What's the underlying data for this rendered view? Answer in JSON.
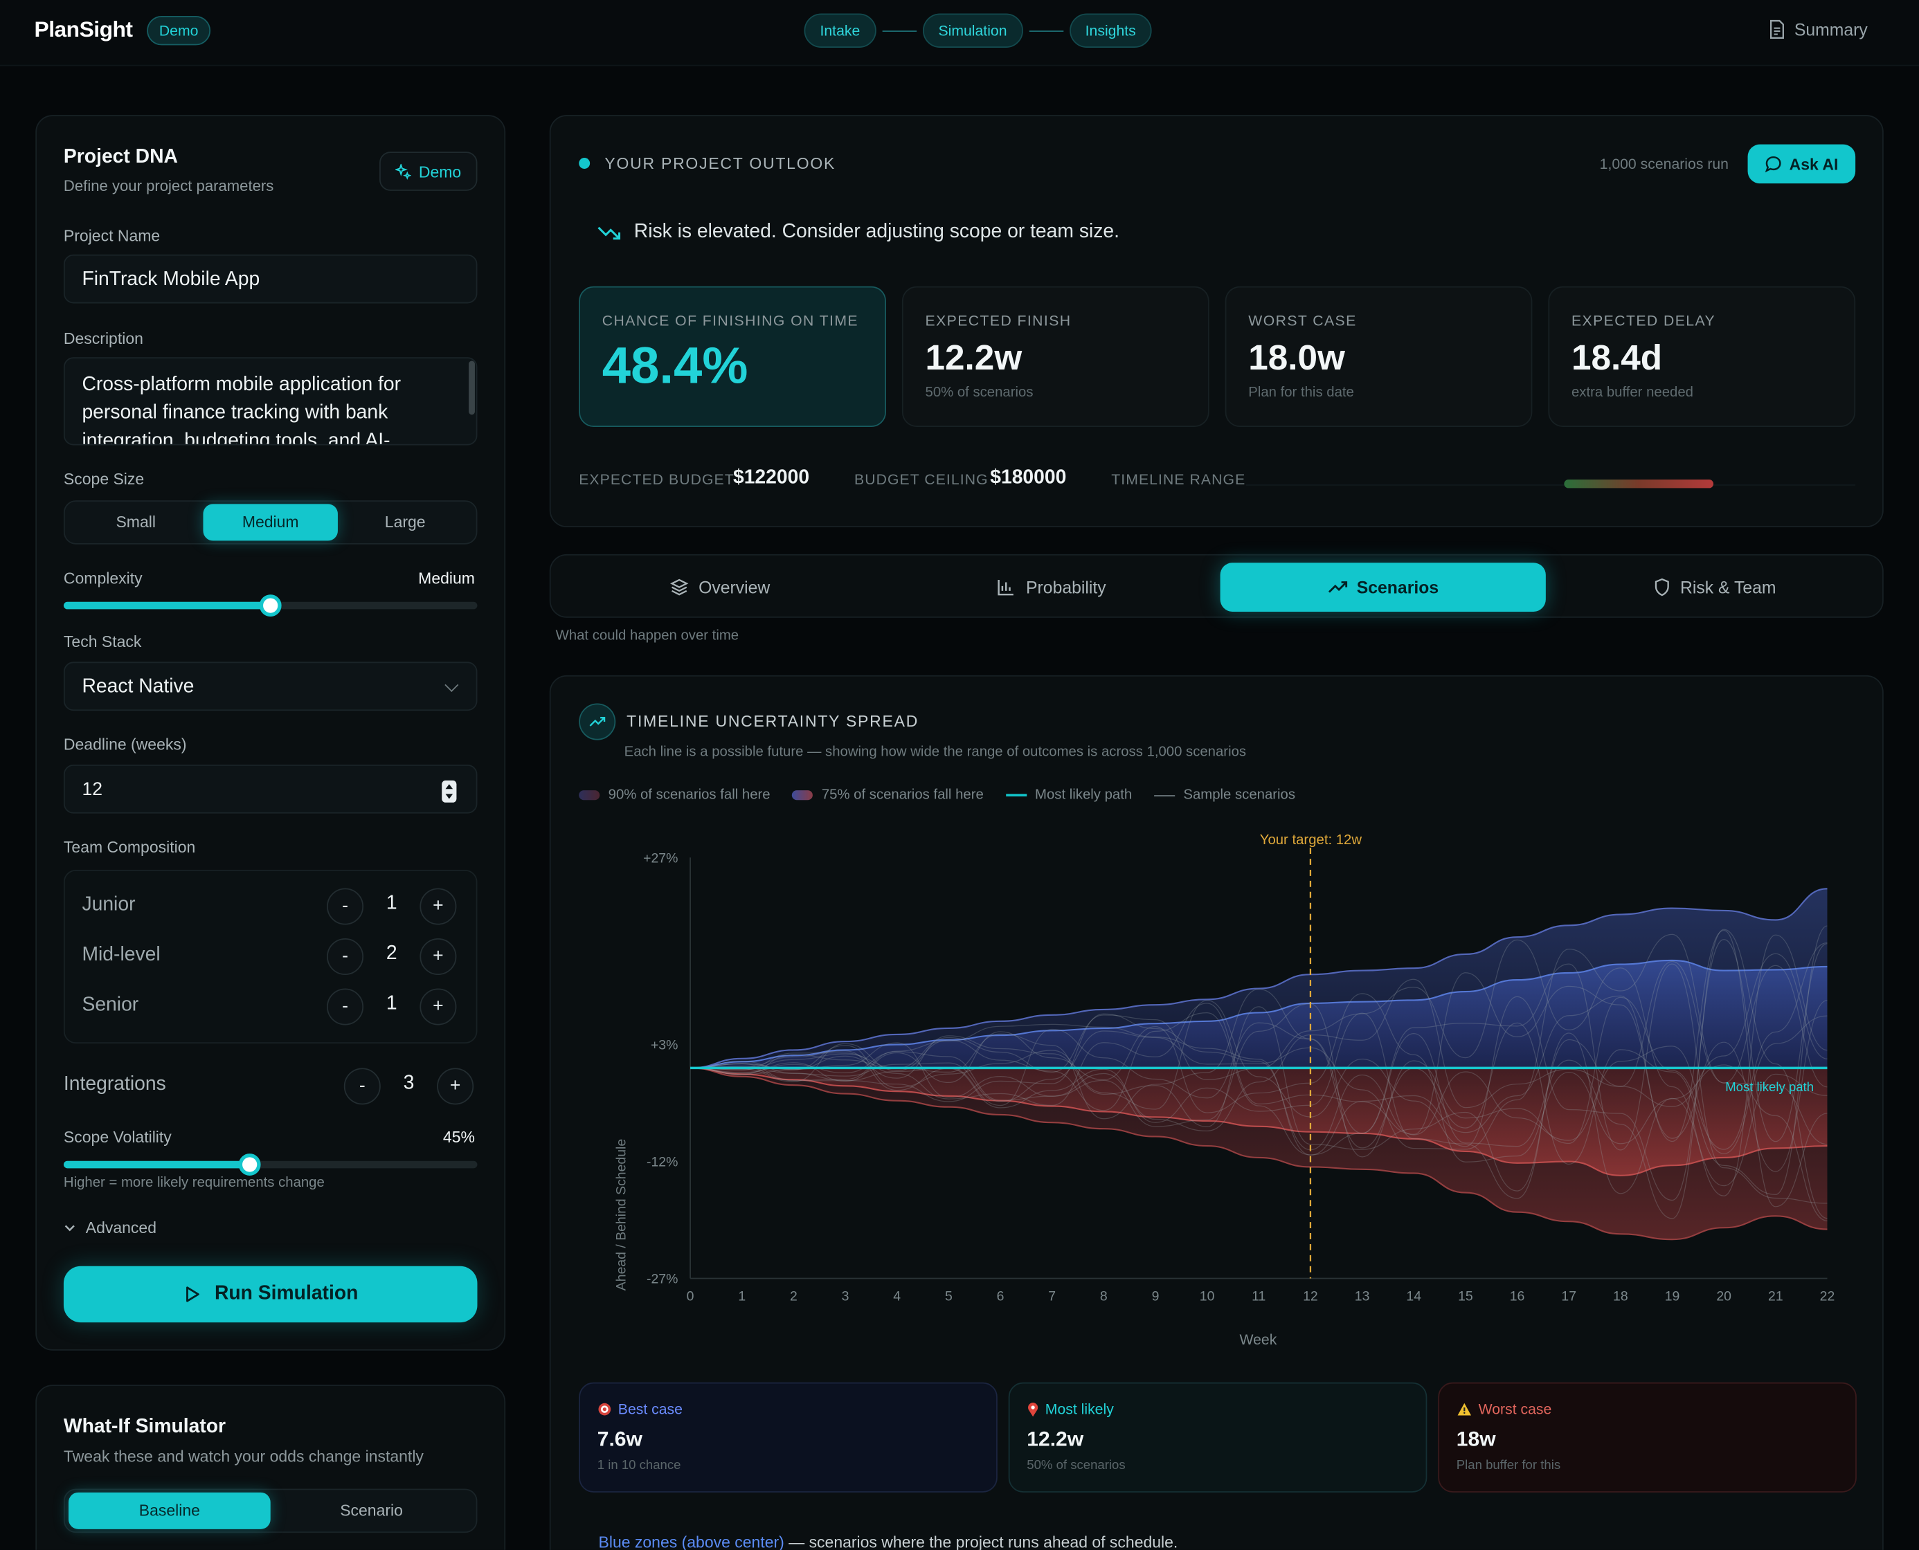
{
  "app": {
    "name": "PlanSight",
    "demo_badge": "Demo",
    "summary": "Summary"
  },
  "steps": [
    "Intake",
    "Simulation",
    "Insights"
  ],
  "project_dna": {
    "title": "Project DNA",
    "subtitle": "Define your project parameters",
    "demo_button": "Demo",
    "project_name_label": "Project Name",
    "project_name": "FinTrack Mobile App",
    "description_label": "Description",
    "description": "Cross-platform mobile application for personal finance tracking with bank integration, budgeting tools, and AI-",
    "scope_label": "Scope Size",
    "scope_options": [
      "Small",
      "Medium",
      "Large"
    ],
    "scope_selected": "Medium",
    "complexity_label": "Complexity",
    "complexity_value": "Medium",
    "complexity_level": 0.5,
    "tech_stack_label": "Tech Stack",
    "tech_stack": "React Native",
    "deadline_label": "Deadline (weeks)",
    "deadline": "12",
    "team_label": "Team Composition",
    "team": [
      {
        "role": "Junior",
        "count": "1"
      },
      {
        "role": "Mid-level",
        "count": "2"
      },
      {
        "role": "Senior",
        "count": "1"
      }
    ],
    "integrations_label": "Integrations",
    "integrations": "3",
    "volatility_label": "Scope Volatility",
    "volatility_value": "45%",
    "volatility_level": 0.45,
    "volatility_hint": "Higher = more likely requirements change",
    "advanced": "Advanced",
    "run_button": "Run Simulation"
  },
  "whatif": {
    "title": "What-If Simulator",
    "subtitle": "Tweak these and watch your odds change instantly",
    "options": [
      "Baseline",
      "Scenario"
    ],
    "selected": "Baseline"
  },
  "outlook": {
    "title": "YOUR PROJECT OUTLOOK",
    "scenarios_run": "1,000 scenarios run",
    "ask_ai": "Ask AI",
    "risk_message": "Risk is elevated. Consider adjusting scope or team size.",
    "stats": [
      {
        "label": "CHANCE OF FINISHING ON TIME",
        "value": "48.4%",
        "sub": ""
      },
      {
        "label": "EXPECTED FINISH",
        "value": "12.2w",
        "sub": "50% of scenarios"
      },
      {
        "label": "WORST CASE",
        "value": "18.0w",
        "sub": "Plan for this date"
      },
      {
        "label": "EXPECTED DELAY",
        "value": "18.4d",
        "sub": "extra buffer needed"
      }
    ],
    "expected_budget_label": "EXPECTED BUDGET",
    "expected_budget": "$122000",
    "budget_ceiling_label": "BUDGET CEILING",
    "budget_ceiling": "$180000",
    "timeline_range_label": "TIMELINE RANGE"
  },
  "tabs": [
    "Overview",
    "Probability",
    "Scenarios",
    "Risk & Team"
  ],
  "active_tab": "Scenarios",
  "tab_caption": "What could happen over time",
  "chart": {
    "title": "TIMELINE UNCERTAINTY SPREAD",
    "subtitle": "Each line is a possible future — showing how wide the range of outcomes is across 1,000 scenarios",
    "legend": [
      "90% of scenarios fall here",
      "75% of scenarios fall here",
      "Most likely path",
      "Sample scenarios"
    ],
    "target_label": "Your target: 12w",
    "most_likely_label": "Most likely path",
    "colors": {
      "accent": "#12c6cc",
      "ahead": "#4f6fd6",
      "behind": "#c44a4a",
      "target": "#e0a93a"
    }
  },
  "chart_data": {
    "type": "area",
    "xlabel": "Week",
    "ylabel": "Ahead / Behind Schedule",
    "x": [
      0,
      1,
      2,
      3,
      4,
      5,
      6,
      7,
      8,
      9,
      10,
      11,
      12,
      13,
      14,
      15,
      16,
      17,
      18,
      19,
      20,
      21,
      22
    ],
    "y_ticks": [
      "+27%",
      "+3%",
      "-12%",
      "-27%"
    ],
    "ylim": [
      -27,
      27
    ],
    "target_week": 12,
    "series": [
      {
        "name": "90% of scenarios fall here",
        "upper": [
          0,
          1.2,
          2.3,
          3.4,
          4.3,
          5.1,
          6.0,
          6.8,
          7.5,
          8.1,
          8.8,
          10.2,
          12.0,
          12.5,
          12.8,
          14.6,
          16.8,
          18.3,
          19.7,
          20.5,
          20.2,
          19.0,
          23.0
        ],
        "lower": [
          0,
          -1.1,
          -2.2,
          -3.3,
          -4.2,
          -5.0,
          -6.0,
          -7.0,
          -7.8,
          -8.8,
          -10.0,
          -11.5,
          -12.7,
          -13.0,
          -13.5,
          -16.0,
          -18.5,
          -19.7,
          -21.3,
          -22.0,
          -20.5,
          -19.0,
          -20.7
        ]
      },
      {
        "name": "75% of scenarios fall here",
        "upper": [
          0,
          0.8,
          1.6,
          2.3,
          3.0,
          3.6,
          4.2,
          4.8,
          5.1,
          5.7,
          6.0,
          7.1,
          8.3,
          8.5,
          8.7,
          9.8,
          11.3,
          12.2,
          13.3,
          13.8,
          12.5,
          12.6,
          13.0
        ],
        "lower": [
          0,
          -0.8,
          -1.5,
          -2.3,
          -3.0,
          -3.6,
          -4.2,
          -4.9,
          -5.6,
          -6.3,
          -6.8,
          -7.5,
          -8.2,
          -8.4,
          -9.1,
          -10.7,
          -12.2,
          -12.0,
          -13.8,
          -12.5,
          -11.5,
          -10.3,
          -10.0
        ]
      },
      {
        "name": "Most likely path",
        "values": [
          0,
          0,
          0,
          0,
          0,
          0,
          0,
          0,
          0,
          0,
          0,
          0,
          0,
          0,
          0,
          0,
          0,
          0,
          0,
          0,
          0,
          0,
          0
        ]
      }
    ]
  }
}
